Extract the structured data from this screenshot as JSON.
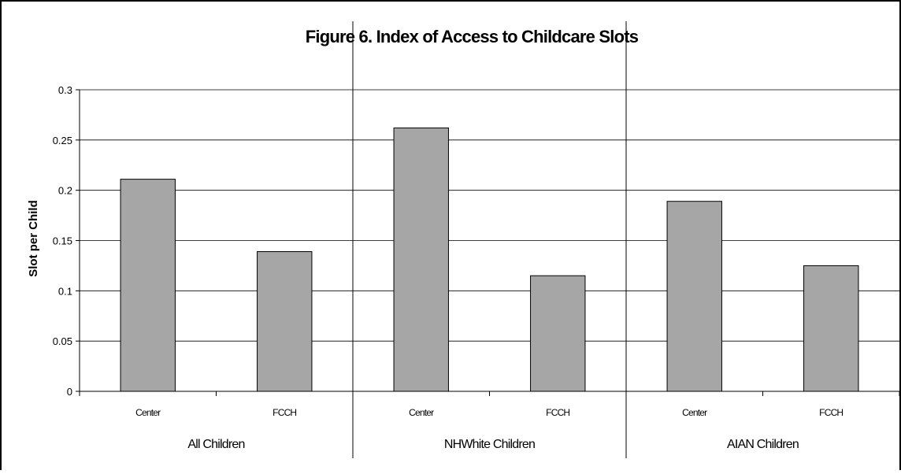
{
  "chart_data": {
    "type": "bar",
    "title": "Figure 6. Index of Access to Childcare Slots",
    "ylabel": "Slot per Child",
    "xlabel": "",
    "ylim": [
      0,
      0.3
    ],
    "yticks": [
      "0",
      "0.05",
      "0.1",
      "0.15",
      "0.2",
      "0.25",
      "0.3"
    ],
    "grid": true,
    "legend": "none",
    "bar_color": "#a6a6a6",
    "groups": [
      {
        "label": "All Children",
        "categories": [
          "Center",
          "FCCH"
        ],
        "values": [
          0.211,
          0.139
        ]
      },
      {
        "label": "NHWhite Children",
        "categories": [
          "Center",
          "FCCH"
        ],
        "values": [
          0.262,
          0.115
        ]
      },
      {
        "label": "AIAN Children",
        "categories": [
          "Center",
          "FCCH"
        ],
        "values": [
          0.189,
          0.125
        ]
      }
    ]
  }
}
